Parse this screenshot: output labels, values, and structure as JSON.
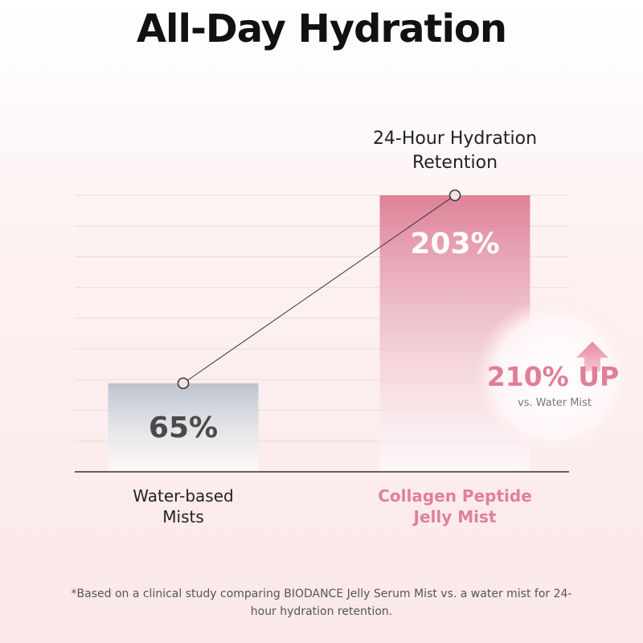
{
  "chart_data": {
    "type": "bar",
    "title": "All-Day Hydration",
    "annotation": "24-Hour Hydration Retention",
    "categories": [
      "Water-based Mists",
      "Collagen Peptide Jelly Mist"
    ],
    "values": [
      65,
      203
    ],
    "value_labels": [
      "65%",
      "203%"
    ],
    "colors": [
      "#bcc3cd",
      "#de8298"
    ],
    "line": true,
    "grid": true,
    "callout": "210% UP",
    "callout_note": "vs. Water Mist",
    "footnote": "*Based on a clinical study comparing BIODANCE Jelly Serum Mist vs. a water mist for 24-hour hydration retention."
  }
}
